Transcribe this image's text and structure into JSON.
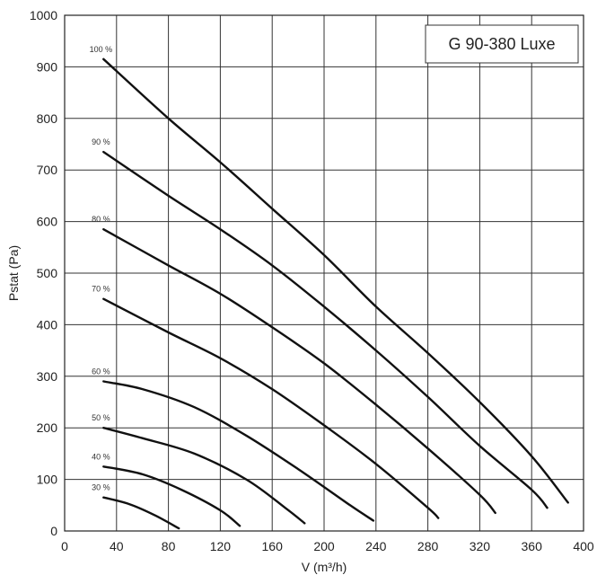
{
  "chart_data": {
    "type": "line",
    "title": "G 90-380 Luxe",
    "xlabel": "V (m³/h)",
    "ylabel": "Pstat (Pa)",
    "xlim": [
      0,
      400
    ],
    "ylim": [
      0,
      1000
    ],
    "x_ticks": [
      "0",
      "40",
      "80",
      "120",
      "160",
      "200",
      "240",
      "280",
      "320",
      "360",
      "400"
    ],
    "y_ticks": [
      "0",
      "100",
      "200",
      "300",
      "400",
      "500",
      "600",
      "700",
      "800",
      "900",
      "1000"
    ],
    "grid": true,
    "series": [
      {
        "name": "100 %",
        "x": [
          30,
          80,
          120,
          160,
          200,
          240,
          280,
          320,
          360,
          388
        ],
        "y": [
          915,
          800,
          715,
          625,
          535,
          435,
          345,
          250,
          145,
          55
        ]
      },
      {
        "name": "90 %",
        "x": [
          30,
          80,
          120,
          160,
          200,
          240,
          280,
          320,
          360,
          372
        ],
        "y": [
          735,
          650,
          585,
          515,
          435,
          350,
          260,
          165,
          80,
          45
        ]
      },
      {
        "name": "80 %",
        "x": [
          30,
          80,
          120,
          160,
          200,
          240,
          280,
          320,
          332
        ],
        "y": [
          585,
          515,
          460,
          395,
          325,
          245,
          160,
          70,
          35
        ]
      },
      {
        "name": "70 %",
        "x": [
          30,
          80,
          120,
          160,
          200,
          240,
          280,
          288
        ],
        "y": [
          450,
          385,
          335,
          275,
          205,
          130,
          45,
          25
        ]
      },
      {
        "name": "60 %",
        "x": [
          30,
          60,
          100,
          140,
          180,
          220,
          238
        ],
        "y": [
          290,
          275,
          240,
          185,
          120,
          50,
          20
        ]
      },
      {
        "name": "50 %",
        "x": [
          30,
          60,
          100,
          140,
          170,
          185
        ],
        "y": [
          200,
          180,
          150,
          100,
          45,
          15
        ]
      },
      {
        "name": "40 %",
        "x": [
          30,
          60,
          90,
          120,
          135
        ],
        "y": [
          125,
          110,
          80,
          40,
          10
        ]
      },
      {
        "name": "30 %",
        "x": [
          30,
          50,
          70,
          88
        ],
        "y": [
          65,
          52,
          30,
          5
        ]
      }
    ]
  }
}
